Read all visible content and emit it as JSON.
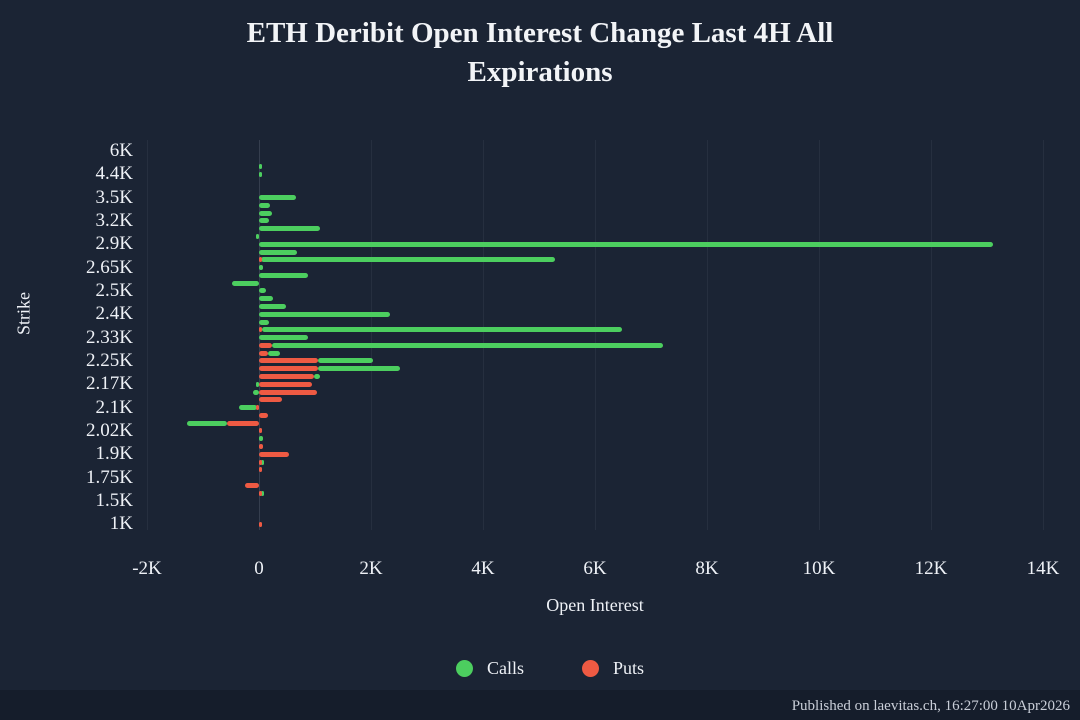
{
  "header": {
    "title_line1": "ETH Deribit Open Interest Change Last 4H All",
    "title_line2": "Expirations"
  },
  "footer": {
    "text": "Published on laevitas.ch, 16:27:00 10Apr2026"
  },
  "legend": {
    "items": [
      {
        "label": "Calls",
        "color": "#4cce5f"
      },
      {
        "label": "Puts",
        "color": "#ee5a43"
      }
    ]
  },
  "colors": {
    "background": "#1b2434",
    "footer_band": "#151d2b",
    "calls": "#4cce5f",
    "puts": "#ee5a43",
    "text": "#f0f2f5"
  },
  "chart_data": {
    "type": "bar",
    "orientation": "horizontal",
    "barmode": "relative-stacked",
    "title": "ETH Deribit Open Interest Change Last 4H All Expirations",
    "xlabel": "Open Interest",
    "ylabel": "Strike",
    "xlim": [
      -2200,
      14050
    ],
    "grid": "vertical-subtle",
    "legend_position": "bottom-center",
    "x_ticks": [
      {
        "label": "-2K",
        "value": -2000
      },
      {
        "label": "0",
        "value": 0
      },
      {
        "label": "2K",
        "value": 2000
      },
      {
        "label": "4K",
        "value": 4000
      },
      {
        "label": "6K",
        "value": 6000
      },
      {
        "label": "8K",
        "value": 8000
      },
      {
        "label": "10K",
        "value": 10000
      },
      {
        "label": "12K",
        "value": 12000
      },
      {
        "label": "14K",
        "value": 14000
      }
    ],
    "series_order": [
      "Puts",
      "Calls"
    ],
    "rows": [
      {
        "strike": "6K",
        "calls": 0,
        "puts": 0
      },
      {
        "strike": "",
        "calls": 0,
        "puts": 0
      },
      {
        "strike": "",
        "calls": 50,
        "puts": 0
      },
      {
        "strike": "4.4K",
        "calls": 60,
        "puts": 0
      },
      {
        "strike": "",
        "calls": 0,
        "puts": 0
      },
      {
        "strike": "",
        "calls": 0,
        "puts": 0
      },
      {
        "strike": "3.5K",
        "calls": 660,
        "puts": 0
      },
      {
        "strike": "",
        "calls": 200,
        "puts": 0
      },
      {
        "strike": "",
        "calls": 230,
        "puts": 0
      },
      {
        "strike": "3.2K",
        "calls": 180,
        "puts": 0
      },
      {
        "strike": "",
        "calls": 1090,
        "puts": 0
      },
      {
        "strike": "",
        "calls": -50,
        "puts": 0
      },
      {
        "strike": "2.9K",
        "calls": 13100,
        "puts": 0
      },
      {
        "strike": "",
        "calls": 680,
        "puts": 0
      },
      {
        "strike": "",
        "calls": 5250,
        "puts": 40
      },
      {
        "strike": "2.65K",
        "calls": 70,
        "puts": 0
      },
      {
        "strike": "",
        "calls": 880,
        "puts": 0
      },
      {
        "strike": "",
        "calls": -480,
        "puts": 0
      },
      {
        "strike": "2.5K",
        "calls": 130,
        "puts": 0
      },
      {
        "strike": "",
        "calls": 250,
        "puts": 0
      },
      {
        "strike": "",
        "calls": 480,
        "puts": 0
      },
      {
        "strike": "2.4K",
        "calls": 2340,
        "puts": 0
      },
      {
        "strike": "",
        "calls": 180,
        "puts": 0
      },
      {
        "strike": "",
        "calls": 6430,
        "puts": 50
      },
      {
        "strike": "2.33K",
        "calls": 870,
        "puts": 0
      },
      {
        "strike": "",
        "calls": 6980,
        "puts": 230
      },
      {
        "strike": "",
        "calls": 210,
        "puts": 160
      },
      {
        "strike": "2.25K",
        "calls": 980,
        "puts": 1050
      },
      {
        "strike": "",
        "calls": 1460,
        "puts": 1050
      },
      {
        "strike": "",
        "calls": 110,
        "puts": 980
      },
      {
        "strike": "2.17K",
        "calls": -50,
        "puts": 950
      },
      {
        "strike": "",
        "calls": -100,
        "puts": 1040
      },
      {
        "strike": "",
        "calls": 0,
        "puts": 410
      },
      {
        "strike": "2.1K",
        "calls": -320,
        "puts": -40
      },
      {
        "strike": "",
        "calls": 0,
        "puts": 160
      },
      {
        "strike": "",
        "calls": -710,
        "puts": -570
      },
      {
        "strike": "2.02K",
        "calls": 0,
        "puts": 30
      },
      {
        "strike": "",
        "calls": 70,
        "puts": 0
      },
      {
        "strike": "",
        "calls": 0,
        "puts": 80
      },
      {
        "strike": "1.9K",
        "calls": 0,
        "puts": 540
      },
      {
        "strike": "",
        "calls": 40,
        "puts": 30
      },
      {
        "strike": "",
        "calls": 0,
        "puts": 40
      },
      {
        "strike": "1.75K",
        "calls": 0,
        "puts": 0
      },
      {
        "strike": "",
        "calls": 0,
        "puts": -250
      },
      {
        "strike": "",
        "calls": 30,
        "puts": 40
      },
      {
        "strike": "1.5K",
        "calls": 0,
        "puts": 0
      },
      {
        "strike": "",
        "calls": 0,
        "puts": 0
      },
      {
        "strike": "",
        "calls": 0,
        "puts": 0
      },
      {
        "strike": "1K",
        "calls": 0,
        "puts": 60
      }
    ]
  }
}
